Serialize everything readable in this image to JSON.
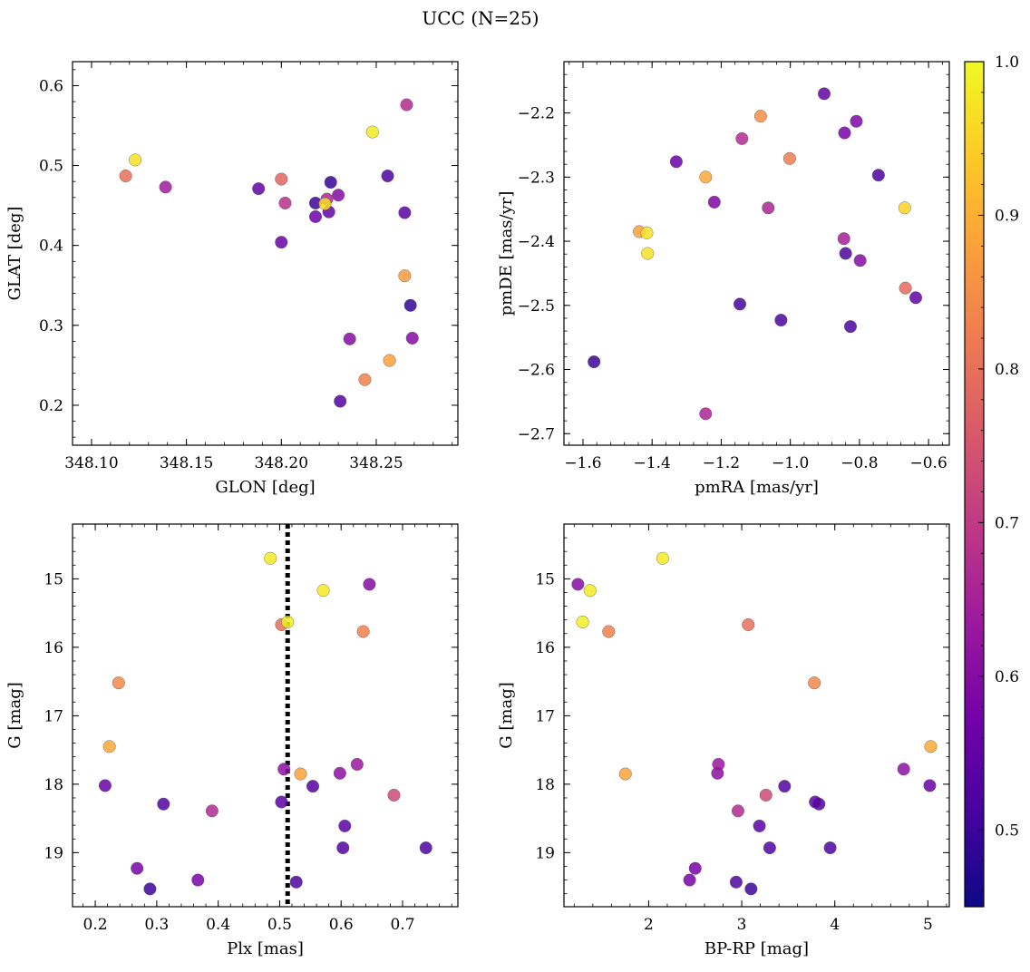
{
  "title": "UCC (N=25)",
  "colormap": [
    "#0d0887",
    "#46039f",
    "#7201a8",
    "#9c179e",
    "#bd3786",
    "#d8576b",
    "#ed7953",
    "#fb9f3a",
    "#fdca26",
    "#f0f921"
  ],
  "colorbar": {
    "range": [
      0.45,
      1.0
    ],
    "ticks": [
      "0.5",
      "0.6",
      "0.7",
      "0.8",
      "0.9",
      "1.0"
    ],
    "tick_values": [
      0.5,
      0.6,
      0.7,
      0.8,
      0.9,
      1.0
    ]
  },
  "chart_data": [
    {
      "type": "scatter",
      "xlabel": "GLON [deg]",
      "ylabel": "GLAT [deg]",
      "xlim": [
        348.09,
        348.293
      ],
      "ylim": [
        0.15,
        0.63
      ],
      "y_inverted": false,
      "xticks": [
        348.1,
        348.15,
        348.2,
        348.25
      ],
      "xtick_labels": [
        "348.10",
        "348.15",
        "348.20",
        "348.25"
      ],
      "yticks": [
        0.2,
        0.3,
        0.4,
        0.5,
        0.6
      ],
      "ytick_labels": [
        "0.2",
        "0.3",
        "0.4",
        "0.5",
        "0.6"
      ],
      "points": [
        {
          "x": 348.118,
          "y": 0.487,
          "c": 0.8
        },
        {
          "x": 348.123,
          "y": 0.507,
          "c": 0.97
        },
        {
          "x": 348.139,
          "y": 0.473,
          "c": 0.64
        },
        {
          "x": 348.188,
          "y": 0.471,
          "c": 0.55
        },
        {
          "x": 348.2,
          "y": 0.404,
          "c": 0.56
        },
        {
          "x": 348.2,
          "y": 0.483,
          "c": 0.78
        },
        {
          "x": 348.202,
          "y": 0.453,
          "c": 0.68
        },
        {
          "x": 348.218,
          "y": 0.453,
          "c": 0.5
        },
        {
          "x": 348.218,
          "y": 0.436,
          "c": 0.57
        },
        {
          "x": 348.223,
          "y": 0.452,
          "c": 0.96
        },
        {
          "x": 348.224,
          "y": 0.458,
          "c": 0.66
        },
        {
          "x": 348.225,
          "y": 0.442,
          "c": 0.55
        },
        {
          "x": 348.226,
          "y": 0.479,
          "c": 0.49
        },
        {
          "x": 348.23,
          "y": 0.463,
          "c": 0.6
        },
        {
          "x": 348.231,
          "y": 0.205,
          "c": 0.53
        },
        {
          "x": 348.236,
          "y": 0.283,
          "c": 0.6
        },
        {
          "x": 348.244,
          "y": 0.232,
          "c": 0.83
        },
        {
          "x": 348.248,
          "y": 0.542,
          "c": 0.98
        },
        {
          "x": 348.256,
          "y": 0.487,
          "c": 0.52
        },
        {
          "x": 348.257,
          "y": 0.256,
          "c": 0.88
        },
        {
          "x": 348.265,
          "y": 0.441,
          "c": 0.54
        },
        {
          "x": 348.265,
          "y": 0.362,
          "c": 0.87
        },
        {
          "x": 348.266,
          "y": 0.576,
          "c": 0.67
        },
        {
          "x": 348.268,
          "y": 0.325,
          "c": 0.49
        },
        {
          "x": 348.269,
          "y": 0.284,
          "c": 0.6
        }
      ]
    },
    {
      "type": "scatter",
      "xlabel": "pmRA [mas/yr]",
      "ylabel": "pmDE [mas/yr]",
      "xlim": [
        -1.655,
        -0.54
      ],
      "ylim": [
        -2.718,
        -2.12
      ],
      "y_inverted": false,
      "xticks": [
        -1.6,
        -1.4,
        -1.2,
        -1.0,
        -0.8,
        -0.6
      ],
      "xtick_labels": [
        "−1.6",
        "−1.4",
        "−1.2",
        "−1.0",
        "−0.8",
        "−0.6"
      ],
      "yticks": [
        -2.7,
        -2.6,
        -2.5,
        -2.4,
        -2.3,
        -2.2
      ],
      "ytick_labels": [
        "−2.7",
        "−2.6",
        "−2.5",
        "−2.4",
        "−2.3",
        "−2.2"
      ],
      "points": [
        {
          "x": -1.568,
          "y": -2.588,
          "c": 0.5
        },
        {
          "x": -1.437,
          "y": -2.385,
          "c": 0.88
        },
        {
          "x": -1.415,
          "y": -2.387,
          "c": 0.97
        },
        {
          "x": -1.413,
          "y": -2.419,
          "c": 0.97
        },
        {
          "x": -1.33,
          "y": -2.276,
          "c": 0.56
        },
        {
          "x": -1.245,
          "y": -2.3,
          "c": 0.89
        },
        {
          "x": -1.245,
          "y": -2.669,
          "c": 0.66
        },
        {
          "x": -1.22,
          "y": -2.339,
          "c": 0.59
        },
        {
          "x": -1.146,
          "y": -2.498,
          "c": 0.51
        },
        {
          "x": -1.14,
          "y": -2.24,
          "c": 0.67
        },
        {
          "x": -1.086,
          "y": -2.205,
          "c": 0.85
        },
        {
          "x": -1.064,
          "y": -2.348,
          "c": 0.66
        },
        {
          "x": -1.027,
          "y": -2.523,
          "c": 0.52
        },
        {
          "x": -1.002,
          "y": -2.271,
          "c": 0.82
        },
        {
          "x": -0.902,
          "y": -2.17,
          "c": 0.55
        },
        {
          "x": -0.845,
          "y": -2.396,
          "c": 0.65
        },
        {
          "x": -0.843,
          "y": -2.231,
          "c": 0.58
        },
        {
          "x": -0.84,
          "y": -2.419,
          "c": 0.52
        },
        {
          "x": -0.826,
          "y": -2.533,
          "c": 0.52
        },
        {
          "x": -0.809,
          "y": -2.213,
          "c": 0.59
        },
        {
          "x": -0.798,
          "y": -2.43,
          "c": 0.6
        },
        {
          "x": -0.745,
          "y": -2.297,
          "c": 0.52
        },
        {
          "x": -0.669,
          "y": -2.348,
          "c": 0.95
        },
        {
          "x": -0.667,
          "y": -2.473,
          "c": 0.79
        },
        {
          "x": -0.637,
          "y": -2.488,
          "c": 0.55
        }
      ]
    },
    {
      "type": "scatter",
      "xlabel": "Plx [mas]",
      "ylabel": "G [mag]",
      "xlim": [
        0.163,
        0.79
      ],
      "ylim": [
        14.2,
        19.79
      ],
      "y_inverted": true,
      "vline": {
        "x": 0.513,
        "style": "dotted"
      },
      "xticks": [
        0.2,
        0.3,
        0.4,
        0.5,
        0.6,
        0.7
      ],
      "xtick_labels": [
        "0.2",
        "0.3",
        "0.4",
        "0.5",
        "0.6",
        "0.7"
      ],
      "yticks": [
        15,
        16,
        17,
        18,
        19
      ],
      "ytick_labels": [
        "15",
        "16",
        "17",
        "18",
        "19"
      ],
      "points": [
        {
          "x": 0.216,
          "y": 18.02,
          "c": 0.56
        },
        {
          "x": 0.223,
          "y": 17.45,
          "c": 0.89
        },
        {
          "x": 0.238,
          "y": 16.52,
          "c": 0.84
        },
        {
          "x": 0.268,
          "y": 19.23,
          "c": 0.58
        },
        {
          "x": 0.289,
          "y": 19.53,
          "c": 0.5
        },
        {
          "x": 0.311,
          "y": 18.29,
          "c": 0.53
        },
        {
          "x": 0.367,
          "y": 19.4,
          "c": 0.58
        },
        {
          "x": 0.39,
          "y": 18.39,
          "c": 0.67
        },
        {
          "x": 0.485,
          "y": 14.7,
          "c": 0.98
        },
        {
          "x": 0.503,
          "y": 15.67,
          "c": 0.8
        },
        {
          "x": 0.503,
          "y": 18.26,
          "c": 0.54
        },
        {
          "x": 0.507,
          "y": 17.78,
          "c": 0.61
        },
        {
          "x": 0.513,
          "y": 15.63,
          "c": 0.99
        },
        {
          "x": 0.527,
          "y": 19.43,
          "c": 0.52
        },
        {
          "x": 0.534,
          "y": 17.85,
          "c": 0.88
        },
        {
          "x": 0.554,
          "y": 18.03,
          "c": 0.53
        },
        {
          "x": 0.571,
          "y": 15.17,
          "c": 0.98
        },
        {
          "x": 0.598,
          "y": 17.84,
          "c": 0.61
        },
        {
          "x": 0.603,
          "y": 18.93,
          "c": 0.53
        },
        {
          "x": 0.606,
          "y": 18.61,
          "c": 0.54
        },
        {
          "x": 0.626,
          "y": 17.71,
          "c": 0.63
        },
        {
          "x": 0.636,
          "y": 15.77,
          "c": 0.83
        },
        {
          "x": 0.646,
          "y": 15.08,
          "c": 0.6
        },
        {
          "x": 0.686,
          "y": 18.16,
          "c": 0.73
        },
        {
          "x": 0.738,
          "y": 18.93,
          "c": 0.52
        }
      ]
    },
    {
      "type": "scatter",
      "xlabel": "BP-RP [mag]",
      "ylabel": "G [mag]",
      "xlim": [
        1.09,
        5.23
      ],
      "ylim": [
        14.2,
        19.79
      ],
      "y_inverted": true,
      "xticks": [
        2,
        3,
        4,
        5
      ],
      "xtick_labels": [
        "2",
        "3",
        "4",
        "5"
      ],
      "yticks": [
        15,
        16,
        17,
        18,
        19
      ],
      "ytick_labels": [
        "15",
        "16",
        "17",
        "18",
        "19"
      ],
      "points": [
        {
          "x": 1.24,
          "y": 15.08,
          "c": 0.6
        },
        {
          "x": 1.29,
          "y": 15.63,
          "c": 0.99
        },
        {
          "x": 1.37,
          "y": 15.17,
          "c": 0.98
        },
        {
          "x": 1.57,
          "y": 15.77,
          "c": 0.83
        },
        {
          "x": 1.75,
          "y": 17.85,
          "c": 0.88
        },
        {
          "x": 2.15,
          "y": 14.7,
          "c": 0.98
        },
        {
          "x": 2.44,
          "y": 19.4,
          "c": 0.58
        },
        {
          "x": 2.5,
          "y": 19.23,
          "c": 0.58
        },
        {
          "x": 2.74,
          "y": 17.84,
          "c": 0.61
        },
        {
          "x": 2.75,
          "y": 17.71,
          "c": 0.63
        },
        {
          "x": 2.94,
          "y": 19.43,
          "c": 0.52
        },
        {
          "x": 2.96,
          "y": 18.39,
          "c": 0.67
        },
        {
          "x": 3.07,
          "y": 15.67,
          "c": 0.8
        },
        {
          "x": 3.1,
          "y": 19.53,
          "c": 0.5
        },
        {
          "x": 3.19,
          "y": 18.61,
          "c": 0.54
        },
        {
          "x": 3.26,
          "y": 18.16,
          "c": 0.73
        },
        {
          "x": 3.3,
          "y": 18.93,
          "c": 0.53
        },
        {
          "x": 3.46,
          "y": 18.03,
          "c": 0.53
        },
        {
          "x": 3.78,
          "y": 16.52,
          "c": 0.84
        },
        {
          "x": 3.79,
          "y": 18.26,
          "c": 0.54
        },
        {
          "x": 3.83,
          "y": 18.29,
          "c": 0.53
        },
        {
          "x": 3.95,
          "y": 18.93,
          "c": 0.52
        },
        {
          "x": 4.74,
          "y": 17.78,
          "c": 0.61
        },
        {
          "x": 5.02,
          "y": 18.02,
          "c": 0.56
        },
        {
          "x": 5.03,
          "y": 17.45,
          "c": 0.89
        }
      ]
    }
  ]
}
